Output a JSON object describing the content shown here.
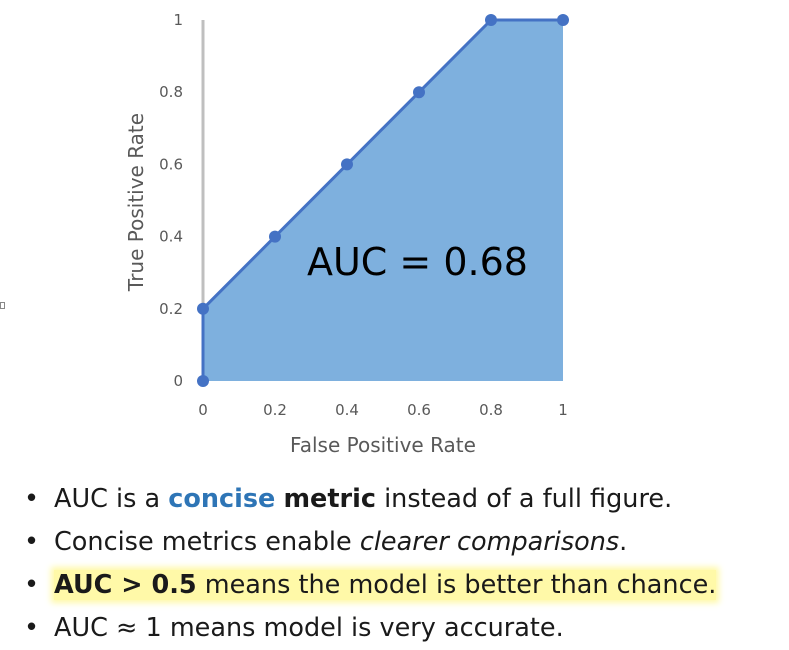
{
  "chart_data": {
    "type": "area",
    "x": [
      0,
      0,
      0.2,
      0.4,
      0.6,
      0.8,
      1
    ],
    "y": [
      0,
      0.2,
      0.4,
      0.6,
      0.8,
      1,
      1
    ],
    "xlabel": "False Positive Rate",
    "ylabel": "True Positive Rate",
    "xlim": [
      0,
      1
    ],
    "ylim": [
      0,
      1
    ],
    "x_ticks": [
      "0",
      "0.2",
      "0.4",
      "0.6",
      "0.8",
      "1"
    ],
    "y_ticks": [
      "0",
      "0.2",
      "0.4",
      "0.6",
      "0.8",
      "1"
    ],
    "annotation": "AUC = 0.68",
    "grid": false,
    "colors": {
      "fill": "#7eb0de",
      "line": "#4472c4",
      "marker": "#4472c4",
      "axis": "#bfbfbf"
    }
  },
  "bullets": {
    "b1": {
      "pre": "AUC is a ",
      "accent": "concise",
      "mid": " ",
      "strong": "metric",
      "post": " instead of a full figure."
    },
    "b2": {
      "pre": "Concise metrics enable ",
      "em": "clearer comparisons",
      "post": "."
    },
    "b3": {
      "strong": "AUC > 0.5",
      "post": " means the model is better than chance."
    },
    "b4": {
      "text": "AUC ≈ 1 means model is very accurate."
    },
    "bullet_char": "•"
  }
}
